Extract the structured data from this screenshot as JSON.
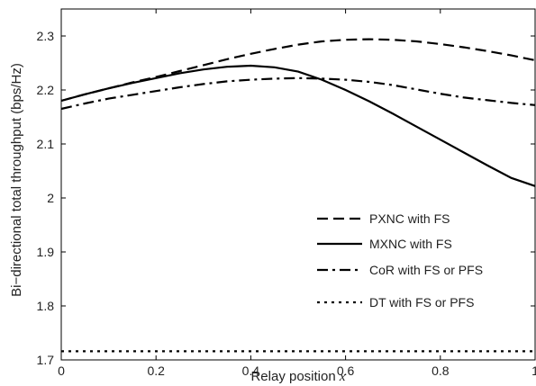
{
  "chart_data": {
    "type": "line",
    "xlabel": "Relay position",
    "xlabel_var": "x",
    "ylabel": "Bi−directional total throughput (bps/Hz)",
    "xlim": [
      0,
      1
    ],
    "ylim": [
      1.7,
      2.35
    ],
    "xticks": [
      0,
      0.2,
      0.4,
      0.6,
      0.8,
      1
    ],
    "xtick_labels": [
      "0",
      "0.2",
      "0.4",
      "0.6",
      "0.8",
      "1"
    ],
    "yticks": [
      1.7,
      1.8,
      1.9,
      2.0,
      2.1,
      2.2,
      2.3
    ],
    "ytick_labels": [
      "1.7",
      "1.8",
      "1.9",
      "2",
      "2.1",
      "2.2",
      "2.3"
    ],
    "grid": false,
    "legend_position": "bottom-right",
    "series": [
      {
        "name": "PXNC with FS",
        "style": "dashed",
        "x": [
          0,
          0.05,
          0.1,
          0.15,
          0.2,
          0.25,
          0.3,
          0.35,
          0.4,
          0.45,
          0.5,
          0.55,
          0.6,
          0.65,
          0.7,
          0.75,
          0.8,
          0.85,
          0.9,
          0.95,
          1.0
        ],
        "y": [
          2.18,
          2.192,
          2.203,
          2.214,
          2.224,
          2.235,
          2.246,
          2.257,
          2.267,
          2.276,
          2.284,
          2.29,
          2.293,
          2.294,
          2.293,
          2.29,
          2.285,
          2.279,
          2.272,
          2.264,
          2.255
        ]
      },
      {
        "name": "MXNC with FS",
        "style": "solid",
        "x": [
          0,
          0.05,
          0.1,
          0.15,
          0.2,
          0.25,
          0.3,
          0.35,
          0.4,
          0.45,
          0.5,
          0.55,
          0.6,
          0.65,
          0.7,
          0.75,
          0.8,
          0.85,
          0.9,
          0.95,
          1.0
        ],
        "y": [
          2.18,
          2.192,
          2.203,
          2.213,
          2.222,
          2.231,
          2.238,
          2.243,
          2.245,
          2.242,
          2.234,
          2.219,
          2.2,
          2.179,
          2.156,
          2.132,
          2.108,
          2.084,
          2.06,
          2.037,
          2.022
        ]
      },
      {
        "name": "CoR with FS or PFS",
        "style": "dashdot",
        "x": [
          0,
          0.05,
          0.1,
          0.15,
          0.2,
          0.25,
          0.3,
          0.35,
          0.4,
          0.45,
          0.5,
          0.55,
          0.6,
          0.65,
          0.7,
          0.75,
          0.8,
          0.85,
          0.9,
          0.95,
          1.0
        ],
        "y": [
          2.165,
          2.175,
          2.184,
          2.191,
          2.198,
          2.205,
          2.211,
          2.216,
          2.219,
          2.221,
          2.222,
          2.221,
          2.219,
          2.215,
          2.209,
          2.201,
          2.193,
          2.186,
          2.181,
          2.176,
          2.172
        ]
      },
      {
        "name": "DT with FS or PFS",
        "style": "dotted",
        "x": [
          0,
          1
        ],
        "y": [
          1.716,
          1.716
        ]
      }
    ]
  }
}
